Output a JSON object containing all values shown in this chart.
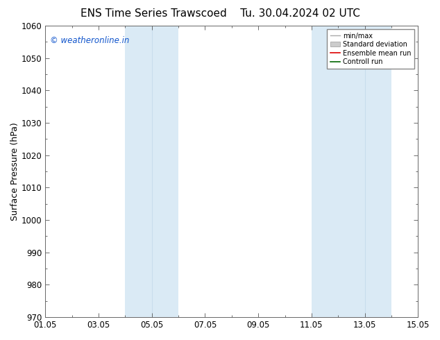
{
  "title_left": "ENS Time Series Trawscoed",
  "title_right": "Tu. 30.04.2024 02 UTC",
  "ylabel": "Surface Pressure (hPa)",
  "ylim": [
    970,
    1060
  ],
  "yticks": [
    970,
    980,
    990,
    1000,
    1010,
    1020,
    1030,
    1040,
    1050,
    1060
  ],
  "xtick_labels": [
    "01.05",
    "03.05",
    "05.05",
    "07.05",
    "09.05",
    "11.05",
    "13.05",
    "15.05"
  ],
  "xtick_positions": [
    0,
    2,
    4,
    6,
    8,
    10,
    12,
    14
  ],
  "weekend_bands": [
    {
      "start": 3.0,
      "end": 4.0,
      "end2": 5.0
    },
    {
      "start": 10.0,
      "end": 12.0,
      "end2": 13.0
    }
  ],
  "band_color": "#daeaf5",
  "band_alpha": 1.0,
  "watermark": "© weatheronline.in",
  "watermark_color": "#1155cc",
  "background_color": "#ffffff",
  "plot_bg_color": "#ffffff",
  "legend_labels": [
    "min/max",
    "Standard deviation",
    "Ensemble mean run",
    "Controll run"
  ],
  "legend_line_colors": [
    "#aaaaaa",
    "#cccccc",
    "#dd0000",
    "#006600"
  ],
  "title_fontsize": 11,
  "label_fontsize": 9,
  "tick_fontsize": 8.5,
  "watermark_fontsize": 8.5
}
